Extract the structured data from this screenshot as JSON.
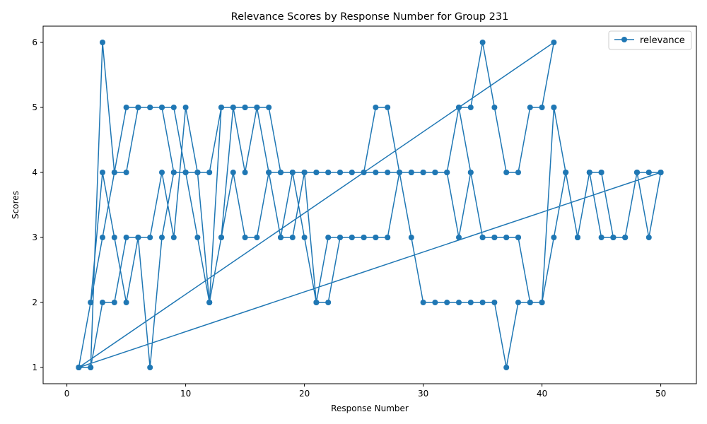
{
  "chart_data": {
    "type": "line",
    "title": "Relevance Scores by Response Number for Group 231",
    "xlabel": "Response Number",
    "ylabel": "Scores",
    "xlim": [
      -2,
      53
    ],
    "ylim": [
      0.75,
      6.25
    ],
    "xticks": [
      0,
      10,
      20,
      30,
      40,
      50
    ],
    "yticks": [
      1,
      2,
      3,
      4,
      5,
      6
    ],
    "grid": false,
    "legend_position": "top-right",
    "line_color": "#1f77b4",
    "series": [
      {
        "name": "relevance",
        "x": [
          1,
          2,
          3,
          4,
          5,
          6,
          7,
          8,
          9,
          10,
          11,
          12,
          13,
          14,
          15,
          16,
          17,
          18,
          19,
          20,
          21,
          22,
          23,
          24,
          25,
          26,
          27,
          28,
          29,
          30,
          31,
          32,
          33,
          34,
          35,
          36,
          37,
          38,
          39,
          40,
          41,
          1,
          2,
          3,
          4,
          5,
          6,
          7,
          8,
          9,
          10,
          11,
          12,
          13,
          14,
          15,
          16,
          17,
          18,
          19,
          20,
          21,
          22,
          23,
          24,
          25,
          26,
          27,
          28,
          29,
          30,
          31,
          32,
          33,
          34,
          35,
          36,
          37,
          38,
          39,
          40,
          41,
          42,
          43,
          44,
          45,
          46,
          47,
          48,
          49,
          50,
          1,
          2,
          3,
          4,
          5,
          6,
          7,
          8,
          9,
          10,
          11,
          12,
          13,
          14,
          15,
          16,
          17,
          18,
          19,
          20,
          21,
          22,
          23,
          24,
          25,
          26,
          27,
          28,
          29,
          30,
          31,
          32,
          33,
          34,
          35,
          36,
          37,
          38,
          39,
          40,
          41,
          42,
          43,
          44,
          45,
          46,
          47,
          48,
          49,
          50,
          1,
          2,
          3,
          4,
          5,
          6,
          7,
          8,
          9,
          10,
          11,
          12,
          13,
          14,
          15,
          16,
          17,
          18,
          19,
          20,
          21,
          22,
          23,
          24,
          25,
          26,
          27,
          28,
          29,
          30,
          31,
          32,
          33,
          34,
          35,
          36,
          37,
          38,
          39,
          40,
          41,
          42,
          43,
          44,
          45,
          46,
          47,
          48,
          49,
          50
        ],
        "y": [
          1,
          1,
          6,
          4,
          5,
          5,
          5,
          5,
          5,
          4,
          4,
          2,
          5,
          5,
          5,
          5,
          5,
          4,
          4,
          4,
          4,
          4,
          4,
          4,
          4,
          5,
          5,
          4,
          4,
          4,
          4,
          4,
          5,
          5,
          6,
          5,
          4,
          4,
          5,
          5,
          6,
          1,
          2,
          3,
          4,
          4,
          5,
          5,
          5,
          4,
          4,
          4,
          4,
          5,
          5,
          5,
          5,
          4,
          4,
          4,
          4,
          4,
          4,
          4,
          4,
          4,
          4,
          4,
          4,
          4,
          4,
          4,
          4,
          5,
          4,
          3,
          3,
          3,
          3,
          2,
          2,
          5,
          4,
          3,
          4,
          4,
          3,
          3,
          4,
          4,
          4,
          1,
          2,
          4,
          3,
          2,
          3,
          3,
          4,
          3,
          5,
          4,
          2,
          3,
          4,
          3,
          3,
          4,
          3,
          3,
          4,
          2,
          3,
          3,
          3,
          3,
          3,
          3,
          4,
          4,
          4,
          4,
          4,
          3,
          4,
          3,
          3,
          3,
          3,
          2,
          2,
          3,
          4,
          3,
          4,
          3,
          3,
          3,
          4,
          3,
          4,
          1,
          1,
          2,
          2,
          3,
          3,
          1,
          3,
          4,
          4,
          3,
          2,
          3,
          5,
          4,
          5,
          4,
          3,
          4,
          3,
          2,
          2,
          3,
          3,
          3,
          3,
          3,
          4,
          3,
          2,
          2,
          2,
          2,
          2,
          2,
          2,
          1,
          2,
          2,
          2,
          5,
          4,
          3,
          4,
          4,
          3,
          3,
          4,
          4,
          4
        ]
      }
    ]
  }
}
